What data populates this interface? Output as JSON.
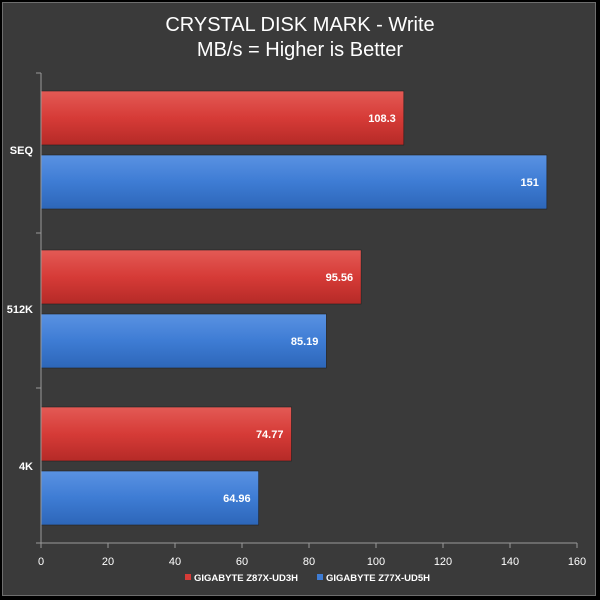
{
  "chart_data": {
    "type": "bar",
    "orientation": "horizontal",
    "title": "CRYSTAL DISK MARK - Write",
    "subtitle": "MB/s = Higher is Better",
    "categories": [
      "SEQ",
      "512K",
      "4K"
    ],
    "series": [
      {
        "name": "GIGABYTE Z87X-UD3H",
        "color": "#d63b37",
        "values": [
          108.3,
          95.56,
          74.77
        ],
        "labels": [
          "108.3",
          "95.56",
          "74.77"
        ]
      },
      {
        "name": "GIGABYTE Z77X-UD5H",
        "color": "#3e7cd4",
        "values": [
          151,
          85.19,
          64.96
        ],
        "labels": [
          "151",
          "85.19",
          "64.96"
        ]
      }
    ],
    "xlim": [
      0,
      160
    ],
    "xticks": [
      "0",
      "20",
      "40",
      "60",
      "80",
      "100",
      "120",
      "140",
      "160"
    ],
    "grid": false,
    "legend": "bottom"
  },
  "colors": {
    "background": "#3a3a3a",
    "axis": "#9a9a9a",
    "text": "#ffffff"
  }
}
